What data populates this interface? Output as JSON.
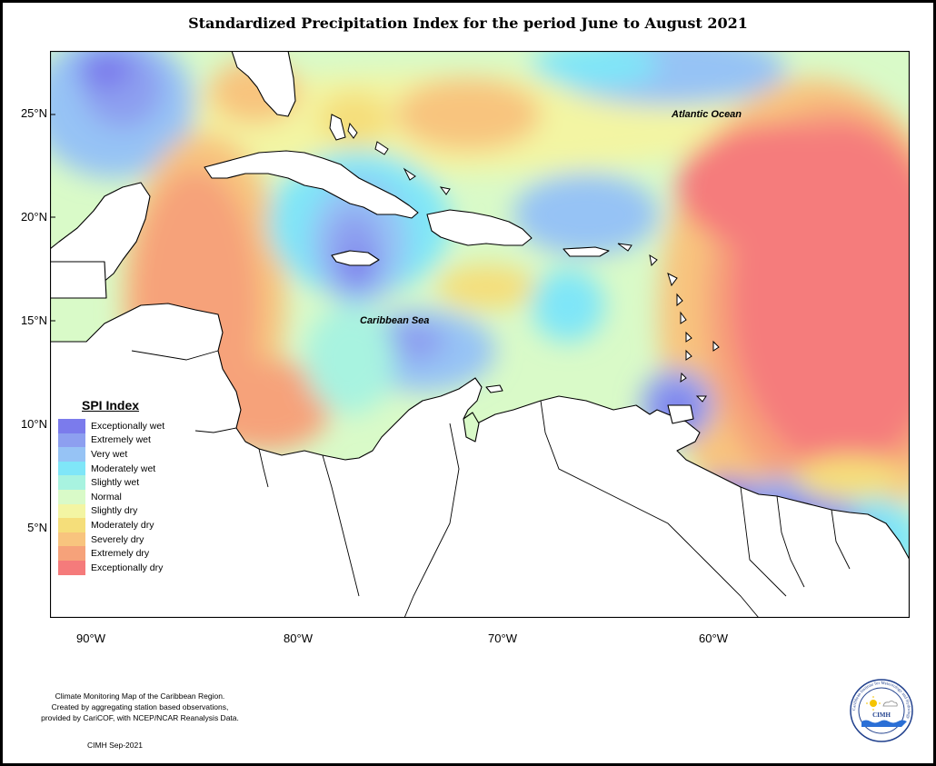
{
  "title": "Standardized Precipitation Index for the period June to August 2021",
  "axes": {
    "y_ticks": [
      "25°N",
      "20°N",
      "15°N",
      "10°N",
      "5°N"
    ],
    "x_ticks": [
      "90°W",
      "80°W",
      "70°W",
      "60°W"
    ]
  },
  "labels": {
    "atlantic": "Atlantic Ocean",
    "caribbean": "Caribbean Sea"
  },
  "legend": {
    "title": "SPI Index",
    "items": [
      {
        "label": "Exceptionally wet",
        "color": "#7b7bec"
      },
      {
        "label": "Extremely wet",
        "color": "#8d9ff0"
      },
      {
        "label": "Very wet",
        "color": "#96c3f5"
      },
      {
        "label": "Moderately wet",
        "color": "#7fe6f8"
      },
      {
        "label": "Slightly wet",
        "color": "#a8f3e0"
      },
      {
        "label": "Normal",
        "color": "#d9fac8"
      },
      {
        "label": "Slightly dry",
        "color": "#f3f5a3"
      },
      {
        "label": "Moderately dry",
        "color": "#f5de7a"
      },
      {
        "label": "Severely dry",
        "color": "#f8c47e"
      },
      {
        "label": "Extremely dry",
        "color": "#f6a27a"
      },
      {
        "label": "Exceptionally dry",
        "color": "#f57b7b"
      }
    ]
  },
  "credits": {
    "line1": "Climate Monitoring Map of the Caribbean Region.",
    "line2": "Created by aggregating station based observations,",
    "line3": "provided by CariCOF, with NCEP/NCAR Reanalysis Data.",
    "date": "CIMH Sep-2021"
  },
  "logo": {
    "ring_text": "Caribbean Institute for Meteorology and Hydrology",
    "acronym": "CIMH"
  }
}
